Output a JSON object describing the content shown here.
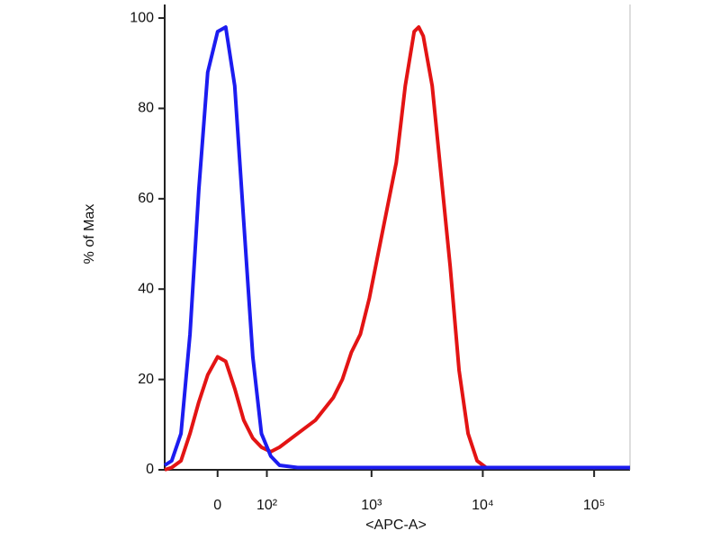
{
  "chart_data": {
    "type": "line",
    "x_label": "<APC-A>",
    "y_label": "% of Max",
    "xscale": "asinh",
    "xlim": [
      -110,
      210000
    ],
    "xticks": [
      0,
      {
        "value": 100,
        "label": "10²"
      },
      {
        "value": 1000,
        "label": "10³"
      },
      {
        "value": 10000,
        "label": "10⁴"
      },
      {
        "value": 100000,
        "label": "10⁵"
      }
    ],
    "ylim": [
      0,
      103
    ],
    "yticks": [
      0,
      20,
      40,
      60,
      80,
      100
    ],
    "x": [
      -110,
      -91,
      -69,
      -50,
      -33,
      -17,
      0,
      14,
      30,
      47,
      66,
      86,
      111,
      138,
      209,
      309,
      451,
      545,
      657,
      793,
      955,
      1151,
      1387,
      1670,
      2010,
      2420,
      2660,
      2920,
      3510,
      4230,
      5090,
      6130,
      7380,
      8890,
      10700,
      32500,
      210000
    ],
    "series": [
      {
        "color": "#e31414",
        "values": [
          0,
          0.5,
          2,
          8,
          15,
          21,
          25,
          24,
          18,
          11,
          7,
          5,
          4,
          5,
          8,
          11,
          16,
          20,
          26,
          30,
          38,
          48,
          58,
          68,
          85,
          97,
          98,
          96,
          85,
          65,
          45,
          22,
          8,
          2,
          0.5,
          0.5,
          0.5
        ]
      },
      {
        "color": "#1c1cf0",
        "values": [
          1,
          2,
          8,
          30,
          62,
          88,
          97,
          98,
          85,
          55,
          25,
          8,
          3,
          1,
          0.5,
          0.5,
          0.5,
          0.5,
          0.5,
          0.5,
          0.5,
          0.5,
          0.5,
          0.5,
          0.5,
          0.5,
          0.5,
          0.5,
          0.5,
          0.5,
          0.5,
          0.5,
          0.5,
          0.5,
          0.5,
          0.5,
          0.5
        ]
      }
    ]
  }
}
